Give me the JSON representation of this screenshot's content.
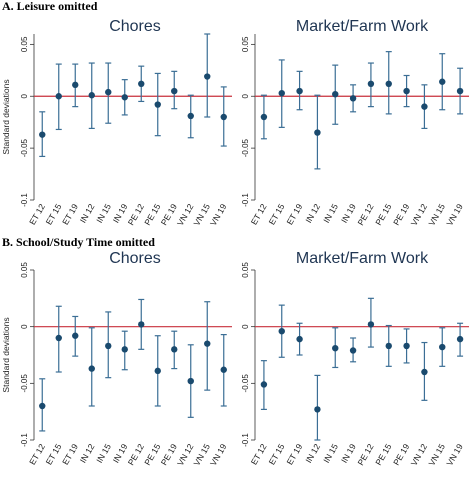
{
  "sections": [
    {
      "label": "A. Leisure omitted"
    },
    {
      "label": "B. School/Study Time omitted"
    }
  ],
  "colors": {
    "point": "#1a4a6e",
    "ci": "#3b6e95",
    "zero_line": "#c8303c",
    "axis": "#333333",
    "title": "#1f3552"
  },
  "chart_data": [
    {
      "type": "scatter",
      "section": "A. Leisure omitted",
      "title": "Chores",
      "ylabel": "Standard deviations",
      "ylim": [
        -0.1,
        0.06
      ],
      "yticks": [
        "0.05",
        "0",
        "-0.05",
        "-0.1"
      ],
      "ytick_values": [
        0.05,
        0,
        -0.05,
        -0.1
      ],
      "categories": [
        "ET 12",
        "ET 15",
        "ET 19",
        "IN 12",
        "IN 15",
        "IN 19",
        "PE 12",
        "PE 15",
        "PE 19",
        "VN 12",
        "VN 15",
        "VN 19"
      ],
      "estimates": [
        -0.037,
        0.0,
        0.011,
        0.001,
        0.004,
        -0.001,
        0.012,
        -0.008,
        0.005,
        -0.019,
        0.019,
        -0.02
      ],
      "ci_low": [
        -0.058,
        -0.032,
        -0.01,
        -0.031,
        -0.026,
        -0.018,
        -0.005,
        -0.038,
        -0.012,
        -0.04,
        -0.02,
        -0.048
      ],
      "ci_high": [
        -0.015,
        0.031,
        0.031,
        0.032,
        0.032,
        0.016,
        0.029,
        0.022,
        0.024,
        0.001,
        0.06,
        0.009
      ],
      "reference_line": 0
    },
    {
      "type": "scatter",
      "section": "A. Leisure omitted",
      "title": "Market/Farm Work",
      "ylabel": "Standard deviations",
      "ylim": [
        -0.1,
        0.06
      ],
      "yticks": [
        "0.05",
        "0",
        "-0.05",
        "-0.1"
      ],
      "ytick_values": [
        0.05,
        0,
        -0.05,
        -0.1
      ],
      "categories": [
        "ET 12",
        "ET 15",
        "ET 19",
        "IN 12",
        "IN 15",
        "IN 19",
        "PE 12",
        "PE 15",
        "PE 19",
        "VN 12",
        "VN 15",
        "VN 19"
      ],
      "estimates": [
        -0.02,
        0.003,
        0.005,
        -0.035,
        0.002,
        -0.002,
        0.012,
        0.012,
        0.005,
        -0.01,
        0.014,
        0.005
      ],
      "ci_low": [
        -0.041,
        -0.03,
        -0.013,
        -0.07,
        -0.027,
        -0.015,
        -0.01,
        -0.017,
        -0.01,
        -0.031,
        -0.013,
        -0.017
      ],
      "ci_high": [
        0.001,
        0.035,
        0.024,
        0.001,
        0.03,
        0.011,
        0.032,
        0.043,
        0.02,
        0.011,
        0.041,
        0.027
      ],
      "reference_line": 0
    },
    {
      "type": "scatter",
      "section": "B. School/Study Time omitted",
      "title": "Chores",
      "ylabel": "Standard deviations",
      "ylim": [
        -0.1,
        0.05
      ],
      "yticks": [
        "0.05",
        "0",
        "-0.05",
        "-0.1"
      ],
      "ytick_values": [
        0.05,
        0,
        -0.05,
        -0.1
      ],
      "categories": [
        "ET 12",
        "ET 15",
        "ET 19",
        "IN 12",
        "IN 15",
        "IN 19",
        "PE 12",
        "PE 15",
        "PE 19",
        "VN 12",
        "VN 15",
        "VN 19"
      ],
      "estimates": [
        -0.07,
        -0.01,
        -0.008,
        -0.037,
        -0.017,
        -0.02,
        0.002,
        -0.039,
        -0.02,
        -0.048,
        -0.015,
        -0.038
      ],
      "ci_low": [
        -0.092,
        -0.04,
        -0.026,
        -0.07,
        -0.045,
        -0.038,
        -0.02,
        -0.07,
        -0.037,
        -0.08,
        -0.056,
        -0.07
      ],
      "ci_high": [
        -0.046,
        0.018,
        0.009,
        -0.001,
        0.013,
        -0.004,
        0.024,
        -0.008,
        -0.004,
        -0.016,
        0.022,
        -0.007
      ],
      "reference_line": 0
    },
    {
      "type": "scatter",
      "section": "B. School/Study Time omitted",
      "title": "Market/Farm Work",
      "ylabel": "Standard deviations",
      "ylim": [
        -0.1,
        0.05
      ],
      "yticks": [
        "0.05",
        "0",
        "-0.05",
        "-0.1"
      ],
      "ytick_values": [
        0.05,
        0,
        -0.05,
        -0.1
      ],
      "categories": [
        "ET 12",
        "ET 15",
        "ET 19",
        "IN 12",
        "IN 15",
        "IN 19",
        "PE 12",
        "PE 15",
        "PE 19",
        "VN 12",
        "VN 15",
        "VN 19"
      ],
      "estimates": [
        -0.051,
        -0.004,
        -0.011,
        -0.073,
        -0.019,
        -0.021,
        0.002,
        -0.017,
        -0.017,
        -0.04,
        -0.018,
        -0.011
      ],
      "ci_low": [
        -0.073,
        -0.027,
        -0.025,
        -0.1,
        -0.036,
        -0.031,
        -0.018,
        -0.035,
        -0.032,
        -0.065,
        -0.035,
        -0.026
      ],
      "ci_high": [
        -0.03,
        0.019,
        0.003,
        -0.043,
        -0.001,
        -0.01,
        0.025,
        0.001,
        -0.002,
        -0.014,
        -0.001,
        0.003
      ],
      "reference_line": 0
    }
  ]
}
